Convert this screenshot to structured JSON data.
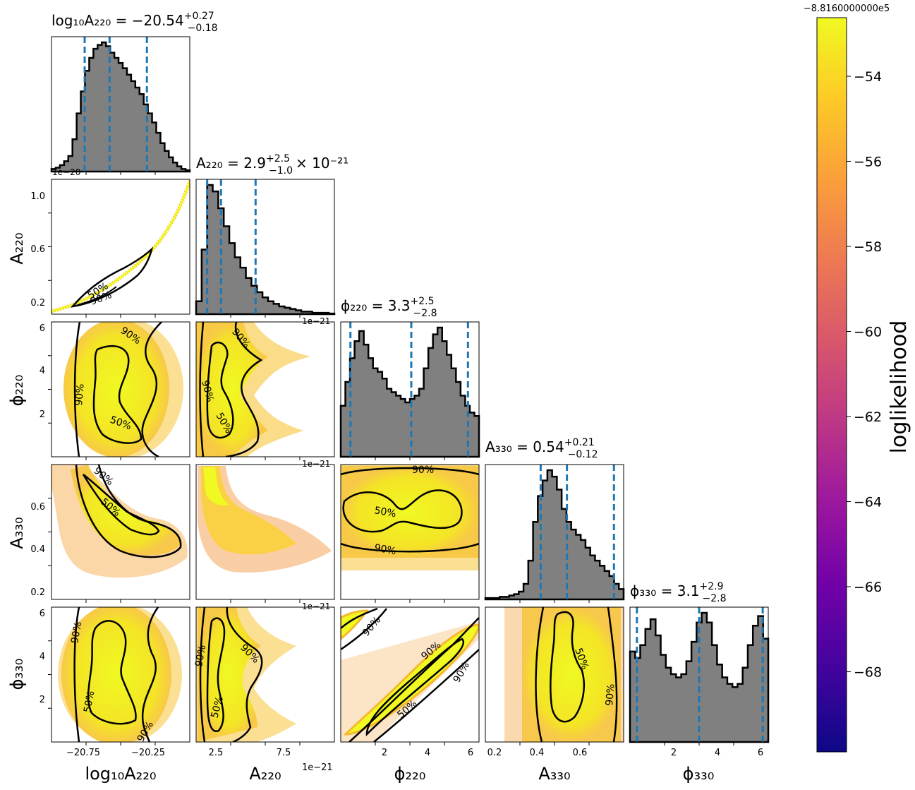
{
  "chart_data": {
    "type": "scatter",
    "title": "",
    "parameters": [
      {
        "key": "log10A220",
        "label": "log₁₀A₂₂₀",
        "xticks": [
          "−20.75",
          "−20.25"
        ]
      },
      {
        "key": "A220",
        "label": "A₂₂₀",
        "xticks": [
          "2.5",
          "7.5"
        ],
        "exponent": "1e−21"
      },
      {
        "key": "phi220",
        "label": "ϕ₂₂₀",
        "xticks": [
          "2",
          "4",
          "6"
        ]
      },
      {
        "key": "A330",
        "label": "A₃₃₀",
        "xticks": [
          "0.2",
          "0.4",
          "0.6"
        ]
      },
      {
        "key": "phi330",
        "label": "ϕ₃₃₀",
        "xticks": [
          "2",
          "4",
          "6"
        ]
      }
    ],
    "row_labels": [
      "A₂₂₀",
      "ϕ₂₂₀",
      "A₃₃₀",
      "ϕ₃₃₀"
    ],
    "row_yticks": [
      [
        "1.0",
        "0.6",
        "0.2"
      ],
      [
        "6",
        "4",
        "2"
      ],
      [
        "0.6",
        "0.4",
        "0.2"
      ],
      [
        "6",
        "4",
        "2"
      ]
    ],
    "panel_exponents": {
      "row1_col0": "1e−20",
      "offset_tiny": "1e−21"
    },
    "titles": [
      {
        "base": "log₁₀A₂₂₀ = −20.54",
        "sup": "+0.27",
        "sub": "−0.18",
        "suffix": ""
      },
      {
        "base": "A₂₂₀ = 2.9",
        "sup": "+2.5",
        "sub": "−1.0",
        "suffix": "× 10⁻²¹"
      },
      {
        "base": "ϕ₂₂₀ = 3.3",
        "sup": "+2.5",
        "sub": "−2.8",
        "suffix": ""
      },
      {
        "base": "A₃₃₀ = 0.54",
        "sup": "+0.21",
        "sub": "−0.12",
        "suffix": ""
      },
      {
        "base": "ϕ₃₃₀ = 3.1",
        "sup": "+2.9",
        "sub": "−2.8",
        "suffix": ""
      }
    ],
    "histograms": [
      [
        2,
        3,
        5,
        8,
        12,
        25,
        45,
        62,
        78,
        88,
        95,
        98,
        100,
        97,
        92,
        88,
        84,
        80,
        75,
        70,
        65,
        60,
        52,
        45,
        38,
        30,
        22,
        16,
        11,
        7,
        4,
        2,
        1
      ],
      [
        10,
        50,
        100,
        95,
        82,
        68,
        55,
        44,
        36,
        28,
        22,
        17,
        13,
        10,
        8,
        6,
        5,
        4,
        3,
        2,
        2,
        1,
        1,
        1,
        0.5
      ],
      [
        30,
        44,
        58,
        68,
        74,
        66,
        58,
        52,
        50,
        46,
        40,
        38,
        36,
        34,
        32,
        34,
        36,
        40,
        52,
        64,
        72,
        76,
        68,
        60,
        52,
        44,
        36,
        30,
        26,
        24
      ],
      [
        1,
        1,
        1,
        2,
        2,
        3,
        4,
        6,
        12,
        30,
        60,
        80,
        92,
        100,
        95,
        85,
        70,
        60,
        54,
        50,
        46,
        40,
        34,
        30,
        26,
        22,
        18,
        12,
        8
      ],
      [
        56,
        52,
        60,
        70,
        76,
        66,
        54,
        46,
        42,
        40,
        42,
        50,
        62,
        74,
        80,
        74,
        60,
        48,
        40,
        36,
        34,
        36,
        46,
        60,
        72,
        78,
        64
      ]
    ],
    "quantile_lines": [
      [
        0.24,
        0.42,
        0.69
      ],
      [
        0.08,
        0.18,
        0.43
      ],
      [
        0.07,
        0.51,
        0.92
      ],
      [
        0.4,
        0.59,
        0.93
      ],
      [
        0.05,
        0.5,
        0.96
      ]
    ],
    "contour_levels": [
      "50%",
      "90%"
    ],
    "colorbar": {
      "label": "loglikelihood",
      "offset": "−8.8160000000e5",
      "ticks": [
        "−54",
        "−56",
        "−58",
        "−60",
        "−62",
        "−64",
        "−66",
        "−68"
      ],
      "colors": [
        "#f0f921",
        "#fdca26",
        "#fb9f3a",
        "#ed7953",
        "#d8576b",
        "#bd3786",
        "#9c179e",
        "#7201a8",
        "#46039f",
        "#0d0887"
      ]
    }
  }
}
